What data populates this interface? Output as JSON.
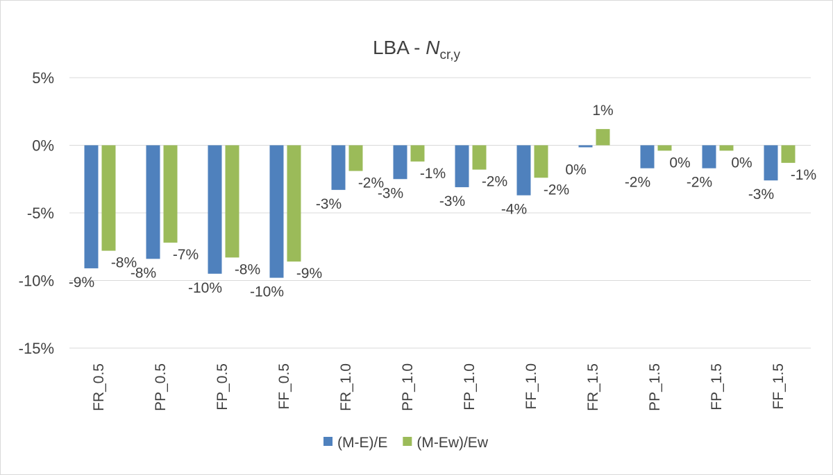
{
  "chart_data": {
    "type": "bar",
    "title": "LBA - ",
    "title_symbol": "N",
    "title_subscript": "cr,y",
    "xlabel": "",
    "ylabel": "",
    "ylim": [
      -15,
      5
    ],
    "yticks": [
      5,
      0,
      -5,
      -10,
      -15
    ],
    "ytick_labels": [
      "5%",
      "0%",
      "-5%",
      "-10%",
      "-15%"
    ],
    "grid": true,
    "legend_position": "bottom",
    "categories": [
      "FR_0.5",
      "PP_0.5",
      "FP_0.5",
      "FF_0.5",
      "FR_1.0",
      "PP_1.0",
      "FP_1.0",
      "FF_1.0",
      "FR_1.5",
      "PP_1.5",
      "FP_1.5",
      "FF_1.5"
    ],
    "series": [
      {
        "name": "(M-E)/E",
        "color": "#4f81bd",
        "values": [
          -9.1,
          -8.4,
          -9.5,
          -9.8,
          -3.3,
          -2.5,
          -3.1,
          -3.7,
          -0.15,
          -1.7,
          -1.7,
          -2.6
        ],
        "labels": [
          "-9%",
          "-8%",
          "-10%",
          "-10%",
          "-3%",
          "-3%",
          "-3%",
          "-4%",
          "0%",
          "-2%",
          "-2%",
          "-3%"
        ]
      },
      {
        "name": "(M-Ew)/Ew",
        "color": "#9bbb59",
        "values": [
          -7.8,
          -7.2,
          -8.3,
          -8.6,
          -1.9,
          -1.2,
          -1.8,
          -2.4,
          1.2,
          -0.4,
          -0.4,
          -1.3
        ],
        "labels": [
          "-8%",
          "-7%",
          "-8%",
          "-9%",
          "-2%",
          "-1%",
          "-2%",
          "-2%",
          "1%",
          "0%",
          "0%",
          "-1%"
        ]
      }
    ]
  }
}
